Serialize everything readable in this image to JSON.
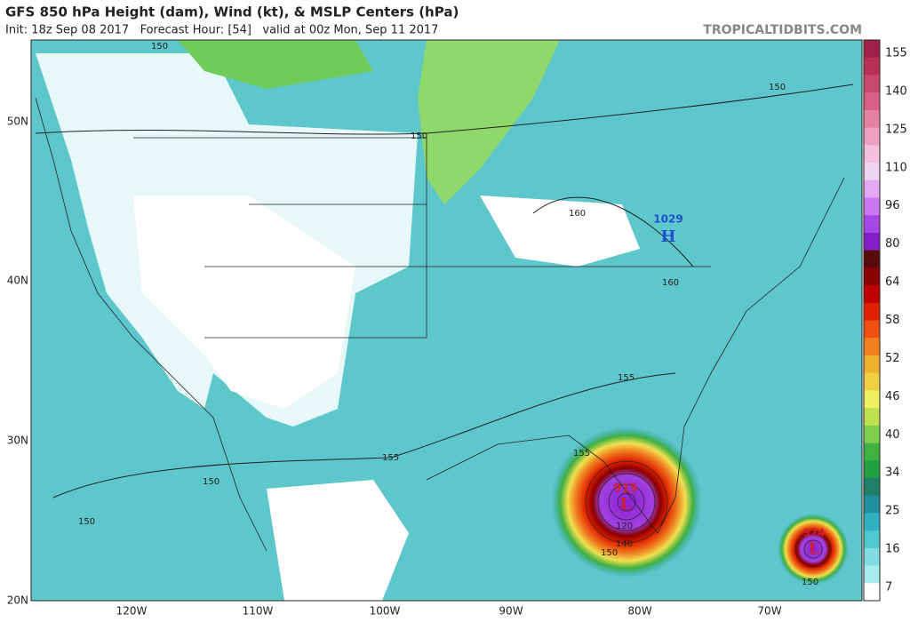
{
  "header": {
    "title": "GFS 850 hPa Height (dam), Wind (kt), & MSLP Centers (hPa)",
    "subtitle": "Init: 18z Sep 08 2017   Forecast Hour: [54]   valid at 00z Mon, Sep 11 2017",
    "source": "TROPICALTIDBITS.COM"
  },
  "colorbar": {
    "labels": [
      "155",
      "140",
      "125",
      "110",
      "96",
      "80",
      "64",
      "58",
      "52",
      "46",
      "40",
      "34",
      "25",
      "16",
      "7"
    ]
  },
  "axes": {
    "latitude": [
      "50N",
      "40N",
      "30N",
      "20N"
    ],
    "longitude": [
      "120W",
      "110W",
      "100W",
      "90W",
      "80W",
      "70W"
    ]
  },
  "contour_labels": [
    "150",
    "150",
    "150",
    "155",
    "155",
    "155",
    "160",
    "160",
    "150",
    "150",
    "150",
    "150"
  ],
  "centers": [
    {
      "letter": "H",
      "pressure": "1029"
    },
    {
      "letter": "L",
      "pressure": "915"
    },
    {
      "letter": "L",
      "pressure": "974"
    }
  ],
  "hurricane_labels": [
    "120",
    "140"
  ]
}
